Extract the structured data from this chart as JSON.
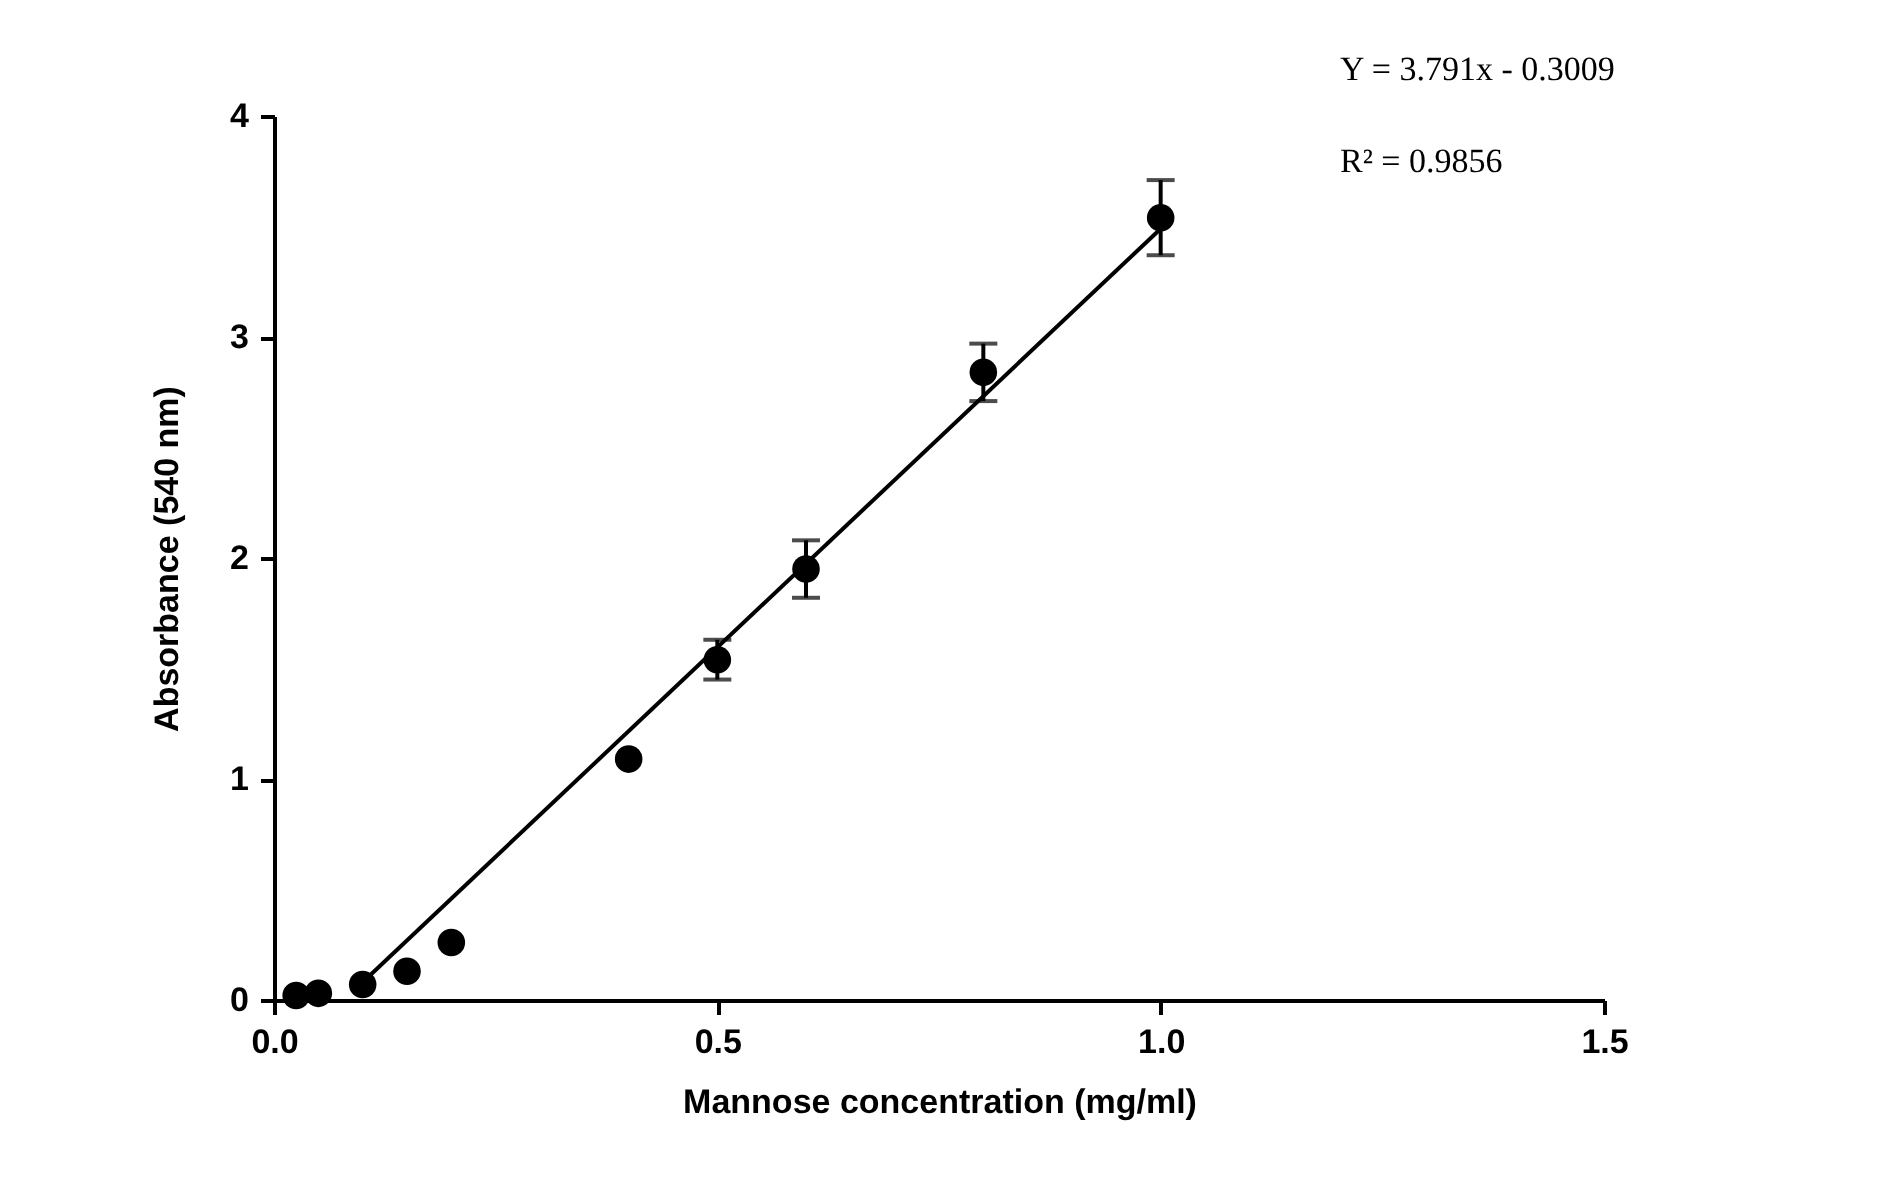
{
  "chart_data": {
    "type": "scatter",
    "xlabel": "Mannose concentration (mg/ml)",
    "ylabel": "Absorbance (540 nm)",
    "annotations": [
      "Y = 3.791x - 0.3009",
      "R² = 0.9856"
    ],
    "series": [
      {
        "color": "#000000",
        "marker": "circle",
        "x": [
          0.025,
          0.05,
          0.1,
          0.15,
          0.2,
          0.4,
          0.5,
          0.6,
          0.8,
          1.0
        ],
        "values": [
          0.02,
          0.03,
          0.07,
          0.13,
          0.26,
          1.09,
          1.54,
          1.95,
          2.84,
          3.54
        ],
        "errors": [
          null,
          null,
          null,
          null,
          null,
          null,
          0.09,
          0.13,
          0.13,
          0.17
        ]
      },
      {
        "type": "line",
        "color": "#000000",
        "marker": "none",
        "line_style": "solid",
        "x": [
          0.1,
          1.0
        ],
        "values": [
          0.08,
          3.49
        ]
      }
    ],
    "xlim": [
      0,
      1.5
    ],
    "xticks": [
      {
        "value": 0,
        "label": "0.0"
      },
      {
        "value": 0.5,
        "label": "0.5"
      },
      {
        "value": 1.0,
        "label": "1.0"
      },
      {
        "value": 1.5,
        "label": "1.5"
      }
    ],
    "ylim": [
      0,
      4
    ],
    "yticks": [
      0,
      1,
      2,
      3,
      4
    ],
    "grid": false
  }
}
